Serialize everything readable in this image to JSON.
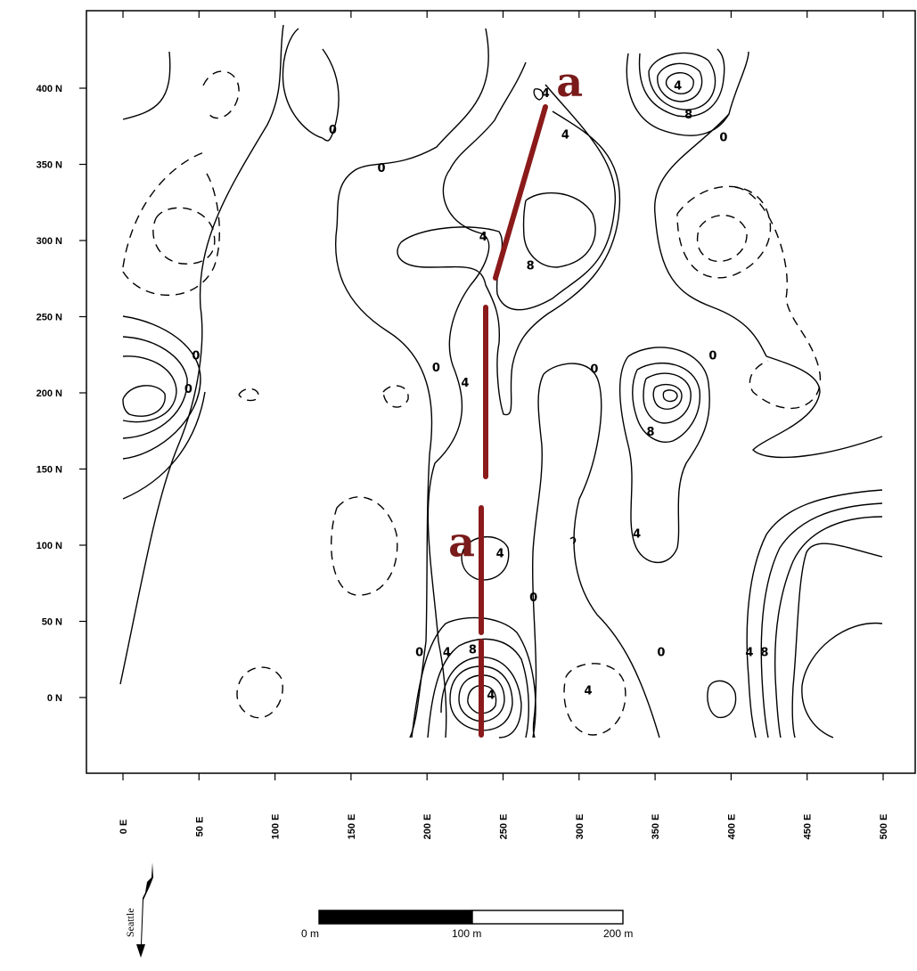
{
  "map": {
    "x_axis": {
      "min": 0,
      "max": 500,
      "step": 50,
      "ticks": [
        "0 E",
        "50 E",
        "100 E",
        "150 E",
        "200 E",
        "250 E",
        "300 E",
        "350 E",
        "400 E",
        "450 E",
        "500 E"
      ]
    },
    "y_axis": {
      "min": 0,
      "max": 400,
      "step": 50,
      "ticks": [
        "0 N",
        "50 N",
        "100 N",
        "150 N",
        "200 N",
        "250 N",
        "300 N",
        "350 N",
        "400 N"
      ]
    },
    "contour_labels": [
      {
        "text": "0",
        "x": 138,
        "y": 373
      },
      {
        "text": "0",
        "x": 170,
        "y": 348
      },
      {
        "text": "4",
        "x": 278,
        "y": 397
      },
      {
        "text": "4",
        "x": 291,
        "y": 370
      },
      {
        "text": "4",
        "x": 365,
        "y": 402
      },
      {
        "text": "8",
        "x": 372,
        "y": 383
      },
      {
        "text": "0",
        "x": 395,
        "y": 368
      },
      {
        "text": "4",
        "x": 237,
        "y": 303
      },
      {
        "text": "8",
        "x": 268,
        "y": 284
      },
      {
        "text": "0",
        "x": 48,
        "y": 225
      },
      {
        "text": "0",
        "x": 43,
        "y": 203
      },
      {
        "text": "0",
        "x": 206,
        "y": 217
      },
      {
        "text": "4",
        "x": 225,
        "y": 207
      },
      {
        "text": "0",
        "x": 310,
        "y": 216
      },
      {
        "text": "0",
        "x": 388,
        "y": 225
      },
      {
        "text": "8",
        "x": 347,
        "y": 175
      },
      {
        "text": "4",
        "x": 338,
        "y": 108
      },
      {
        "text": "4",
        "x": 248,
        "y": 95
      },
      {
        "text": "0",
        "x": 270,
        "y": 66
      },
      {
        "text": "0",
        "x": 195,
        "y": 30
      },
      {
        "text": "4",
        "x": 213,
        "y": 30
      },
      {
        "text": "8",
        "x": 230,
        "y": 32
      },
      {
        "text": "4",
        "x": 242,
        "y": 2
      },
      {
        "text": "4",
        "x": 306,
        "y": 5
      },
      {
        "text": "0",
        "x": 354,
        "y": 30
      },
      {
        "text": "4",
        "x": 412,
        "y": 30
      },
      {
        "text": "8",
        "x": 422,
        "y": 30
      }
    ],
    "annotations": [
      {
        "text": "a",
        "x": 285,
        "y": 404,
        "color": "#7a1a1a"
      },
      {
        "text": "a",
        "x": 214,
        "y": 102,
        "color": "#7a1a1a"
      }
    ],
    "anomaly_color": "#8b1a1a",
    "scale_bar": {
      "labels": [
        "0 m",
        "100 m",
        "200 m"
      ]
    },
    "north_arrow": {
      "label": "Seattle"
    }
  }
}
